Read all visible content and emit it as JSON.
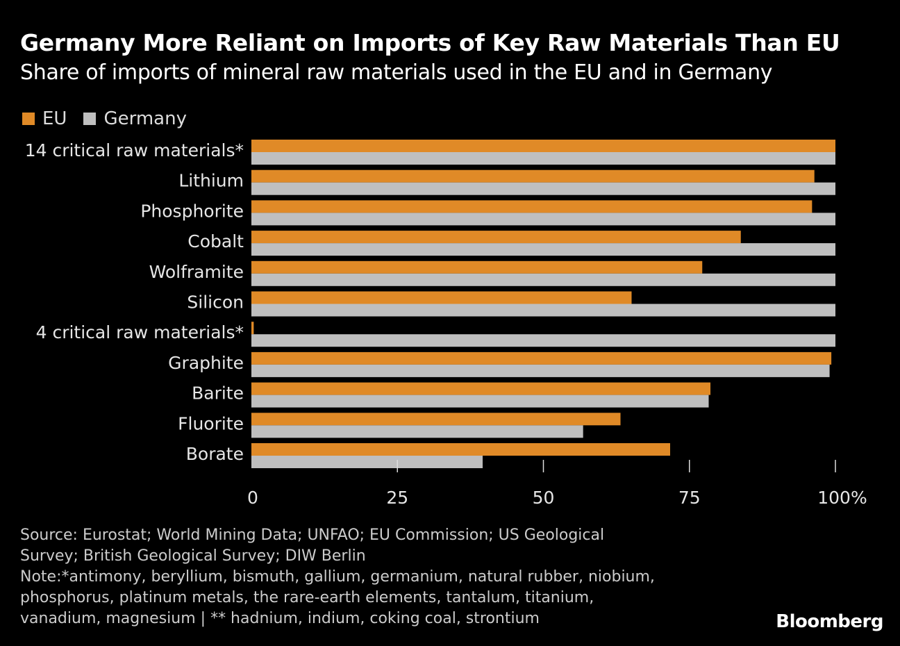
{
  "header": {
    "title": "Germany More Reliant on Imports of Key Raw Materials Than EU",
    "subtitle": "Share of imports of mineral raw materials used in the EU and in Germany"
  },
  "legend": [
    {
      "label": "EU",
      "color": "#e08a27"
    },
    {
      "label": "Germany",
      "color": "#bfbfbf"
    }
  ],
  "chart_data": {
    "type": "bar",
    "orientation": "horizontal",
    "title": "Germany More Reliant on Imports of Key Raw Materials Than EU",
    "subtitle": "Share of imports of mineral raw materials used in the EU and in Germany",
    "categories": [
      "14 critical raw materials*",
      "Lithium",
      "Phosphorite",
      "Cobalt",
      "Wolframite",
      "Silicon",
      "4 critical raw materials*",
      "Graphite",
      "Barite",
      "Fluorite",
      "Borate"
    ],
    "series": [
      {
        "name": "EU",
        "color": "#e08a27",
        "values": [
          100,
          96.4,
          96,
          83.8,
          77.2,
          65.1,
          0.4,
          99.3,
          78.6,
          63.2,
          71.7
        ]
      },
      {
        "name": "Germany",
        "color": "#bfbfbf",
        "values": [
          100,
          100,
          100,
          100,
          100,
          100,
          100,
          99,
          78.3,
          56.8,
          39.6
        ]
      }
    ],
    "xlim": [
      0,
      100
    ],
    "xticks": [
      0,
      25,
      50,
      75,
      100
    ],
    "xtick_labels": [
      "0",
      "25",
      "50",
      "75",
      "100%"
    ],
    "xlabel": "",
    "ylabel": "",
    "grid": false,
    "legend_position": "top-left"
  },
  "footer": {
    "source_lines": [
      "Source: Eurostat; World Mining Data; UNFAO; EU Commission; US Geological",
      "Survey; British Geological Survey; DIW Berlin",
      "Note:*antimony, beryllium, bismuth, gallium, germanium, natural rubber, niobium,",
      "phosphorus, platinum metals, the rare-earth elements, tantalum, titanium,",
      "vanadium, magnesium | ** hadnium, indium, coking coal, strontium"
    ],
    "brand": "Bloomberg"
  }
}
